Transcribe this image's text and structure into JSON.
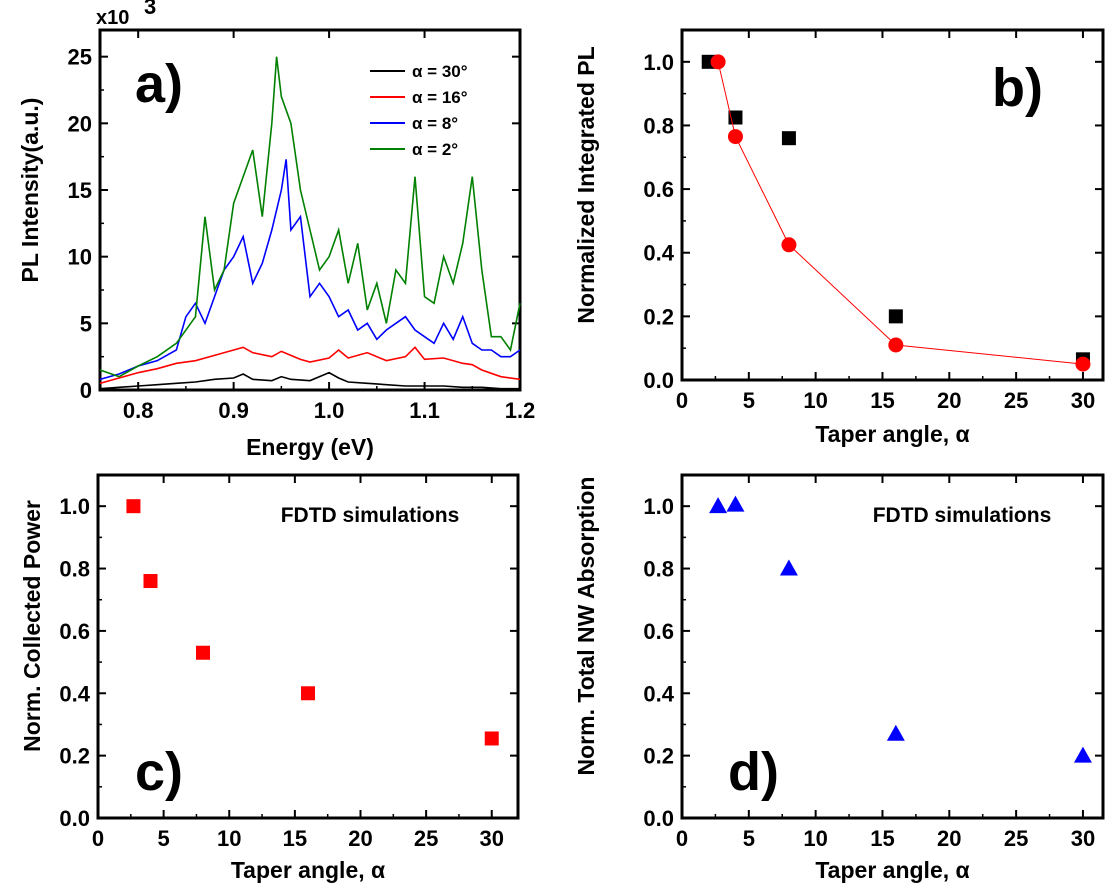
{
  "chart_data": [
    {
      "panel": "a)",
      "type": "line",
      "xlabel": "Energy (eV)",
      "ylabel": "PL Intensity(a.u.)",
      "y_multiplier": "x10",
      "y_multiplier_exp": "3",
      "xlim": [
        0.76,
        1.2
      ],
      "ylim": [
        0,
        27
      ],
      "xticks": [
        0.8,
        0.9,
        1.0,
        1.1,
        1.2
      ],
      "xtick_labels": [
        "0.8",
        "0.9",
        "1.0",
        "1.1",
        "1.2"
      ],
      "yticks": [
        0,
        5,
        10,
        15,
        20,
        25
      ],
      "ytick_labels": [
        "0",
        "5",
        "10",
        "15",
        "20",
        "25"
      ],
      "legend_position": "top-right",
      "series": [
        {
          "name": "α = 30°",
          "color": "#000000",
          "x": [
            0.76,
            0.78,
            0.8,
            0.82,
            0.84,
            0.86,
            0.88,
            0.9,
            0.91,
            0.92,
            0.94,
            0.95,
            0.96,
            0.98,
            1.0,
            1.01,
            1.02,
            1.04,
            1.06,
            1.08,
            1.1,
            1.12,
            1.14,
            1.16,
            1.18,
            1.2
          ],
          "y": [
            0.1,
            0.2,
            0.3,
            0.4,
            0.5,
            0.6,
            0.8,
            0.9,
            1.2,
            0.8,
            0.7,
            1.0,
            0.8,
            0.7,
            1.3,
            0.9,
            0.6,
            0.5,
            0.4,
            0.3,
            0.3,
            0.3,
            0.2,
            0.2,
            0.1,
            0.1
          ]
        },
        {
          "name": "α = 16°",
          "color": "#ff0000",
          "x": [
            0.76,
            0.78,
            0.8,
            0.82,
            0.84,
            0.86,
            0.88,
            0.9,
            0.91,
            0.92,
            0.94,
            0.95,
            0.96,
            0.97,
            0.98,
            1.0,
            1.01,
            1.02,
            1.04,
            1.06,
            1.08,
            1.09,
            1.1,
            1.12,
            1.14,
            1.15,
            1.16,
            1.18,
            1.2
          ],
          "y": [
            0.5,
            0.9,
            1.3,
            1.6,
            2.0,
            2.2,
            2.6,
            3.0,
            3.2,
            2.8,
            2.5,
            2.9,
            2.6,
            2.3,
            2.1,
            2.4,
            3.0,
            2.4,
            2.8,
            2.2,
            2.5,
            3.2,
            2.3,
            2.4,
            2.0,
            1.9,
            1.5,
            1.0,
            0.8
          ]
        },
        {
          "name": "α = 8°",
          "color": "#0000ff",
          "x": [
            0.76,
            0.78,
            0.8,
            0.82,
            0.84,
            0.85,
            0.86,
            0.87,
            0.88,
            0.89,
            0.9,
            0.91,
            0.92,
            0.93,
            0.94,
            0.95,
            0.955,
            0.96,
            0.97,
            0.98,
            0.99,
            1.0,
            1.01,
            1.02,
            1.03,
            1.04,
            1.05,
            1.06,
            1.07,
            1.08,
            1.09,
            1.1,
            1.11,
            1.12,
            1.13,
            1.14,
            1.15,
            1.16,
            1.17,
            1.18,
            1.19,
            1.2
          ],
          "y": [
            0.8,
            1.2,
            1.8,
            2.2,
            3.0,
            5.5,
            6.5,
            5.0,
            7.0,
            9.0,
            10.0,
            11.5,
            8.0,
            9.5,
            12.0,
            15.0,
            17.3,
            12.0,
            13.0,
            7.0,
            8.0,
            7.0,
            5.5,
            6.0,
            4.5,
            5.0,
            3.8,
            4.5,
            5.0,
            5.5,
            4.5,
            4.0,
            3.5,
            5.0,
            3.8,
            5.5,
            3.5,
            3.0,
            3.0,
            2.5,
            2.5,
            3.0
          ]
        },
        {
          "name": "α = 2°",
          "color": "#008000",
          "x": [
            0.76,
            0.78,
            0.8,
            0.82,
            0.84,
            0.86,
            0.87,
            0.88,
            0.89,
            0.9,
            0.91,
            0.92,
            0.93,
            0.94,
            0.945,
            0.95,
            0.96,
            0.97,
            0.98,
            0.99,
            1.0,
            1.01,
            1.02,
            1.03,
            1.04,
            1.05,
            1.06,
            1.07,
            1.08,
            1.09,
            1.1,
            1.11,
            1.12,
            1.13,
            1.14,
            1.15,
            1.16,
            1.17,
            1.18,
            1.19,
            1.2
          ],
          "y": [
            1.5,
            1.0,
            1.8,
            2.5,
            3.5,
            5.5,
            13.0,
            7.5,
            9.0,
            14.0,
            16.0,
            18.0,
            13.0,
            20.0,
            25.0,
            22.0,
            20.0,
            15.0,
            12.0,
            9.0,
            10.0,
            12.0,
            8.0,
            11.0,
            6.0,
            8.0,
            5.0,
            9.0,
            8.0,
            16.0,
            7.0,
            6.5,
            10.0,
            8.0,
            11.0,
            16.0,
            9.0,
            4.0,
            4.0,
            3.0,
            6.5
          ]
        }
      ]
    },
    {
      "panel": "b)",
      "type": "scatter",
      "xlabel": "Taper angle, α",
      "ylabel": "Normalized Integrated PL",
      "xlim": [
        0,
        31.5
      ],
      "ylim": [
        0,
        1.1
      ],
      "xticks": [
        0,
        5,
        10,
        15,
        20,
        25,
        30
      ],
      "xtick_labels": [
        "0",
        "5",
        "10",
        "15",
        "20",
        "25",
        "30"
      ],
      "yticks": [
        0,
        0.2,
        0.4,
        0.6,
        0.8,
        1.0
      ],
      "ytick_labels": [
        "0.0",
        "0.2",
        "0.4",
        "0.6",
        "0.8",
        "1.0"
      ],
      "series": [
        {
          "marker": "square",
          "color": "#000000",
          "x": [
            2,
            4,
            8,
            16,
            30
          ],
          "y": [
            1.0,
            0.825,
            0.76,
            0.2,
            0.065
          ]
        },
        {
          "marker": "circle",
          "color": "#ff0000",
          "line": true,
          "x": [
            2.7,
            4,
            8,
            16,
            30
          ],
          "y": [
            1.0,
            0.765,
            0.425,
            0.11,
            0.05
          ]
        }
      ]
    },
    {
      "panel": "c)",
      "type": "scatter",
      "annotation": "FDTD simulations",
      "xlabel": "Taper angle, α",
      "ylabel": "Norm. Collected Power",
      "xlim": [
        0,
        32
      ],
      "ylim": [
        0,
        1.1
      ],
      "xticks": [
        0,
        5,
        10,
        15,
        20,
        25,
        30
      ],
      "xtick_labels": [
        "0",
        "5",
        "10",
        "15",
        "20",
        "25",
        "30"
      ],
      "yticks": [
        0,
        0.2,
        0.4,
        0.6,
        0.8,
        1.0
      ],
      "ytick_labels": [
        "0.0",
        "0.2",
        "0.4",
        "0.6",
        "0.8",
        "1.0"
      ],
      "series": [
        {
          "marker": "square",
          "color": "#ff0000",
          "x": [
            2.7,
            4,
            8,
            16,
            30
          ],
          "y": [
            1.0,
            0.76,
            0.53,
            0.4,
            0.255
          ]
        }
      ]
    },
    {
      "panel": "d)",
      "type": "scatter",
      "annotation": "FDTD simulations",
      "xlabel": "Taper angle, α",
      "ylabel": "Norm. Total NW Absorption",
      "xlim": [
        0,
        31.5
      ],
      "ylim": [
        0,
        1.1
      ],
      "xticks": [
        0,
        5,
        10,
        15,
        20,
        25,
        30
      ],
      "xtick_labels": [
        "0",
        "5",
        "10",
        "15",
        "20",
        "25",
        "30"
      ],
      "yticks": [
        0,
        0.2,
        0.4,
        0.6,
        0.8,
        1.0
      ],
      "ytick_labels": [
        "0.0",
        "0.2",
        "0.4",
        "0.6",
        "0.8",
        "1.0"
      ],
      "series": [
        {
          "marker": "triangle",
          "color": "#0000ff",
          "x": [
            2.7,
            4,
            8,
            16,
            30
          ],
          "y": [
            1.0,
            1.005,
            0.8,
            0.27,
            0.2
          ]
        }
      ]
    }
  ]
}
